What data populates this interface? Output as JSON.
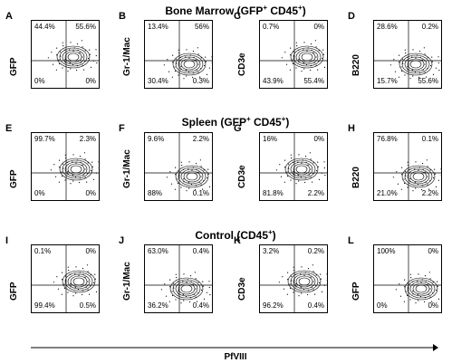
{
  "sections": [
    {
      "title": "Bone Marrow (GFP",
      "sup": "+",
      "title2": " CD45",
      "sup2": "+",
      "title3": ")"
    },
    {
      "title": "Spleen (GFP",
      "sup": "+",
      "title2": " CD45",
      "sup2": "+",
      "title3": ")"
    },
    {
      "title": "Control (CD45",
      "sup": "+",
      "title2": ")",
      "sup2": "",
      "title3": ""
    }
  ],
  "x_axis_label": "PfVIII",
  "panels": [
    {
      "letter": "A",
      "ylabel": "GFP",
      "tl": "44.4%",
      "tr": "55.6%",
      "bl": "0%",
      "br": "0%"
    },
    {
      "letter": "B",
      "ylabel": "Gr-1/Mac",
      "tl": "13.4%",
      "tr": "56%",
      "bl": "30.4%",
      "br": "0.3%"
    },
    {
      "letter": "C",
      "ylabel": "CD3e",
      "tl": "0.7%",
      "tr": "0%",
      "bl": "43.9%",
      "br": "55.4%"
    },
    {
      "letter": "D",
      "ylabel": "B220",
      "tl": "28.6%",
      "tr": "0.2%",
      "bl": "15.7%",
      "br": "55.6%"
    },
    {
      "letter": "E",
      "ylabel": "GFP",
      "tl": "99.7%",
      "tr": "2.3%",
      "bl": "0%",
      "br": "0%"
    },
    {
      "letter": "F",
      "ylabel": "Gr-1/Mac",
      "tl": "9.6%",
      "tr": "2.2%",
      "bl": "88%",
      "br": "0.1%"
    },
    {
      "letter": "G",
      "ylabel": "CD3e",
      "tl": "16%",
      "tr": "0%",
      "bl": "81.8%",
      "br": "2.2%"
    },
    {
      "letter": "H",
      "ylabel": "B220",
      "tl": "76.8%",
      "tr": "0.1%",
      "bl": "21.0%",
      "br": "2.2%"
    },
    {
      "letter": "I",
      "ylabel": "GFP",
      "tl": "0.1%",
      "tr": "0%",
      "bl": "99.4%",
      "br": "0.5%"
    },
    {
      "letter": "J",
      "ylabel": "Gr-1/Mac",
      "tl": "63.0%",
      "tr": "0.4%",
      "bl": "36.2%",
      "br": "0.4%"
    },
    {
      "letter": "K",
      "ylabel": "CD3e",
      "tl": "3.2%",
      "tr": "0.2%",
      "bl": "96.2%",
      "br": "0.4%"
    },
    {
      "letter": "L",
      "ylabel": "GFP",
      "tl": "100%",
      "tr": "0%",
      "bl": "0%",
      "br": "0%"
    }
  ]
}
